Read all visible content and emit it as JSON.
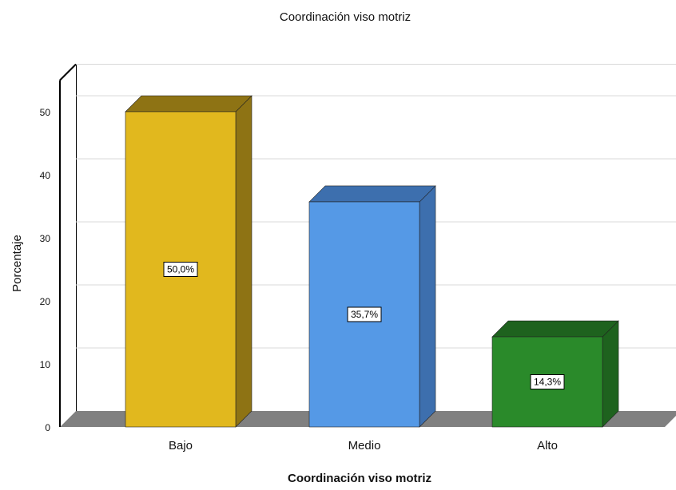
{
  "chart_data": {
    "type": "bar",
    "title": "Coordinación viso motriz",
    "xlabel": "Coordinación viso motriz",
    "ylabel": "Porcentaje",
    "categories": [
      "Bajo",
      "Medio",
      "Alto"
    ],
    "values": [
      50.0,
      35.7,
      14.3
    ],
    "data_labels": [
      "50,0%",
      "35,7%",
      "14,3%"
    ],
    "colors": {
      "front": [
        "#E1B81E",
        "#5599E6",
        "#2A8A2A"
      ],
      "top": [
        "#8E7314",
        "#3D6FAE",
        "#1E621E"
      ],
      "side": [
        "#8E7314",
        "#3D6FAE",
        "#1E621E"
      ]
    },
    "yticks": [
      0,
      10,
      20,
      30,
      40,
      50
    ],
    "ylim": [
      0,
      55
    ],
    "grid": true,
    "legend": false,
    "style": "3d"
  }
}
